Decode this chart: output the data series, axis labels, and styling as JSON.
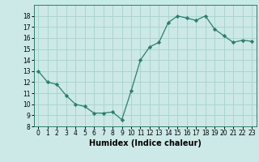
{
  "x": [
    0,
    1,
    2,
    3,
    4,
    5,
    6,
    7,
    8,
    9,
    10,
    11,
    12,
    13,
    14,
    15,
    16,
    17,
    18,
    19,
    20,
    21,
    22,
    23
  ],
  "y": [
    13,
    12,
    11.8,
    10.8,
    10,
    9.8,
    9.2,
    9.2,
    9.3,
    8.6,
    11.2,
    14,
    15.2,
    15.6,
    17.4,
    18,
    17.8,
    17.6,
    18,
    16.8,
    16.2,
    15.6,
    15.8,
    15.7
  ],
  "line_color": "#2e7d6e",
  "marker": "D",
  "marker_size": 2.2,
  "bg_color": "#cce9e7",
  "grid_color": "#aad4d1",
  "xlabel": "Humidex (Indice chaleur)",
  "xlim": [
    -0.5,
    23.5
  ],
  "ylim": [
    8,
    19
  ],
  "yticks": [
    8,
    9,
    10,
    11,
    12,
    13,
    14,
    15,
    16,
    17,
    18
  ],
  "xticks": [
    0,
    1,
    2,
    3,
    4,
    5,
    6,
    7,
    8,
    9,
    10,
    11,
    12,
    13,
    14,
    15,
    16,
    17,
    18,
    19,
    20,
    21,
    22,
    23
  ],
  "tick_fontsize": 5.5,
  "xlabel_fontsize": 7
}
